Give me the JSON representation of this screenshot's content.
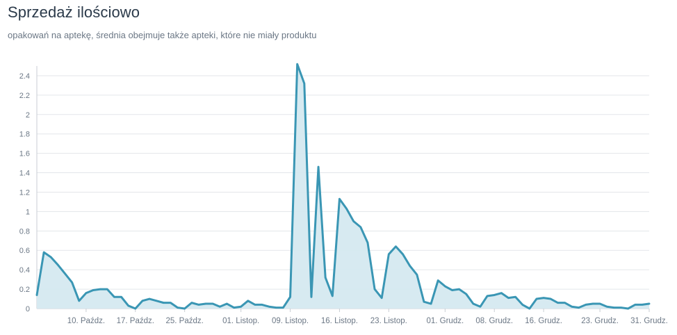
{
  "header": {
    "title": "Sprzedaż ilościowo",
    "subtitle": "opakowań na aptekę, średnia obejmuje także apteki, które nie miały produktu"
  },
  "colors": {
    "line": "#3a96b4",
    "fill": "#d5e9f0",
    "grid": "#e3e6ea",
    "axis": "#c9ced4",
    "text": "#6b7785"
  },
  "chart_data": {
    "type": "area",
    "title": "Sprzedaż ilościowo",
    "subtitle": "opakowań na aptekę, średnia obejmuje także apteki, które nie miały produktu",
    "xlabel": "",
    "ylabel": "",
    "ylim": [
      0,
      2.5
    ],
    "yticks": [
      0,
      0.2,
      0.4,
      0.6,
      0.8,
      1,
      1.2,
      1.4,
      1.6,
      1.8,
      2,
      2.2,
      2.4
    ],
    "grid": true,
    "legend": "none",
    "x_range": [
      0,
      87
    ],
    "xticks": [
      {
        "x": 7,
        "label": "10. Paźdz."
      },
      {
        "x": 14,
        "label": "17. Paźdz."
      },
      {
        "x": 21,
        "label": "25. Paźdz."
      },
      {
        "x": 29,
        "label": "01. Listop."
      },
      {
        "x": 36,
        "label": "09. Listop."
      },
      {
        "x": 43,
        "label": "16. Listop."
      },
      {
        "x": 50,
        "label": "23. Listop."
      },
      {
        "x": 58,
        "label": "01. Grudz."
      },
      {
        "x": 65,
        "label": "08. Grudz."
      },
      {
        "x": 72,
        "label": "16. Grudz."
      },
      {
        "x": 80,
        "label": "23. Grudz."
      },
      {
        "x": 87,
        "label": "31. Grudz."
      }
    ],
    "values": [
      0.14,
      0.58,
      0.53,
      0.45,
      0.36,
      0.27,
      0.08,
      0.16,
      0.19,
      0.2,
      0.2,
      0.12,
      0.12,
      0.03,
      0.0,
      0.08,
      0.1,
      0.08,
      0.06,
      0.06,
      0.01,
      0.0,
      0.06,
      0.04,
      0.05,
      0.05,
      0.02,
      0.05,
      0.01,
      0.02,
      0.08,
      0.04,
      0.04,
      0.02,
      0.01,
      0.01,
      0.12,
      2.52,
      2.32,
      0.12,
      1.46,
      0.32,
      0.13,
      1.13,
      1.03,
      0.9,
      0.84,
      0.68,
      0.2,
      0.11,
      0.56,
      0.64,
      0.56,
      0.44,
      0.35,
      0.07,
      0.05,
      0.29,
      0.23,
      0.19,
      0.2,
      0.15,
      0.05,
      0.02,
      0.13,
      0.14,
      0.16,
      0.11,
      0.12,
      0.04,
      0.0,
      0.1,
      0.11,
      0.1,
      0.06,
      0.06,
      0.02,
      0.01,
      0.04,
      0.05,
      0.05,
      0.02,
      0.01,
      0.01,
      0.0,
      0.04,
      0.04,
      0.05
    ]
  }
}
